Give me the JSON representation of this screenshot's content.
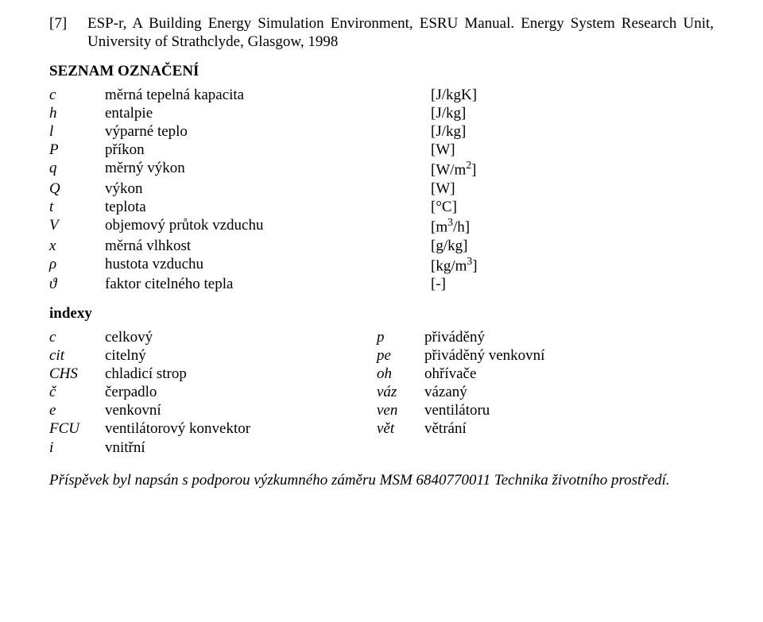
{
  "reference": {
    "num": "[7]",
    "text": "ESP-r, A Building Energy Simulation Environment, ESRU Manual. Energy System Research Unit, University of Strathclyde, Glasgow, 1998"
  },
  "heading_symbols": "SEZNAM OZNAČENÍ",
  "symbols": [
    {
      "sym": "c",
      "desc": "měrná tepelná kapacita",
      "unit": "[J/kgK]"
    },
    {
      "sym": "h",
      "desc": "entalpie",
      "unit": "[J/kg]"
    },
    {
      "sym": "l",
      "desc": "výparné teplo",
      "unit": "[J/kg]"
    },
    {
      "sym": "P",
      "desc": "příkon",
      "unit": "[W]"
    },
    {
      "sym": "q",
      "desc": "měrný výkon",
      "unit_html": "[W/m<sup>2</sup>]"
    },
    {
      "sym": "Q",
      "desc": "výkon",
      "unit": "[W]"
    },
    {
      "sym": "t",
      "desc": "teplota",
      "unit": "[°C]"
    },
    {
      "sym": "V",
      "desc": "objemový průtok vzduchu",
      "unit_html": "[m<sup>3</sup>/h]"
    },
    {
      "sym": "x",
      "desc": "měrná vlhkost",
      "unit": "[g/kg]"
    },
    {
      "sym": "ρ",
      "desc": "hustota vzduchu",
      "unit_html": "[kg/m<sup>3</sup>]"
    },
    {
      "sym": "ϑ",
      "desc": "faktor citelného tepla",
      "unit": "[-]"
    }
  ],
  "heading_indices": "indexy",
  "indices": [
    {
      "s1": "c",
      "d1": "celkový",
      "s2": "p",
      "d2": "přiváděný"
    },
    {
      "s1": "cit",
      "d1": "citelný",
      "s2": "pe",
      "d2": "přiváděný venkovní"
    },
    {
      "s1": "CHS",
      "d1": "chladicí strop",
      "s2": "oh",
      "d2": "ohřívače"
    },
    {
      "s1": "č",
      "d1": "čerpadlo",
      "s2": "váz",
      "d2": "vázaný"
    },
    {
      "s1": "e",
      "d1": "venkovní",
      "s2": "ven",
      "d2": "ventilátoru"
    },
    {
      "s1": "FCU",
      "d1": "ventilátorový konvektor",
      "s2": "vět",
      "d2": "větrání"
    },
    {
      "s1": "i",
      "d1": "vnitřní",
      "s2": "",
      "d2": ""
    }
  ],
  "footnote": "Příspěvek byl napsán s podporou výzkumného záměru MSM 6840770011 Technika životního prostředí."
}
